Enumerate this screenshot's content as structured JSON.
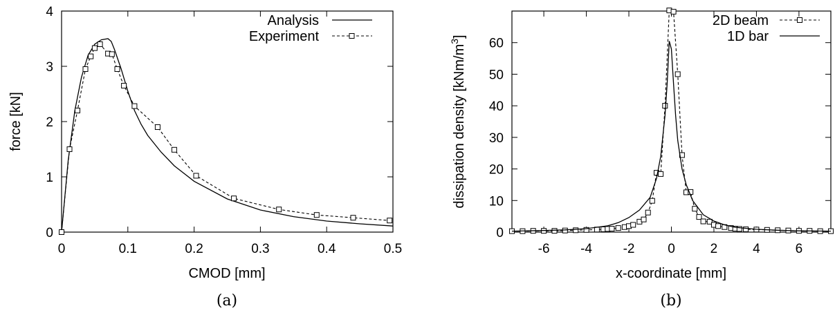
{
  "chart_data": [
    {
      "type": "line",
      "caption": "(a)",
      "xlabel": "CMOD [mm]",
      "ylabel": "force [kN]",
      "xlim": [
        0,
        0.5
      ],
      "ylim": [
        0,
        4
      ],
      "xticks": [
        0,
        0.1,
        0.2,
        0.3,
        0.4,
        0.5
      ],
      "yticks": [
        0,
        1,
        2,
        3,
        4
      ],
      "xtick_labels": [
        "0",
        "0.1",
        "0.2",
        "0.3",
        "0.4",
        "0.5"
      ],
      "ytick_labels": [
        "0",
        "1",
        "2",
        "3",
        "4"
      ],
      "grid": false,
      "legend_position": "top-right",
      "series": [
        {
          "name": "Analysis",
          "style": "solid",
          "marker": "none",
          "x": [
            0,
            0.01,
            0.02,
            0.03,
            0.04,
            0.05,
            0.06,
            0.07,
            0.075,
            0.08,
            0.09,
            0.1,
            0.11,
            0.12,
            0.13,
            0.15,
            0.17,
            0.2,
            0.25,
            0.3,
            0.35,
            0.4,
            0.45,
            0.5
          ],
          "y": [
            0,
            1.3,
            2.2,
            2.8,
            3.2,
            3.4,
            3.48,
            3.5,
            3.45,
            3.3,
            2.95,
            2.55,
            2.2,
            1.95,
            1.75,
            1.45,
            1.2,
            0.92,
            0.6,
            0.4,
            0.28,
            0.2,
            0.15,
            0.11
          ]
        },
        {
          "name": "Experiment",
          "style": "dashed",
          "marker": "square",
          "x": [
            0,
            0.012,
            0.024,
            0.036,
            0.044,
            0.05,
            0.058,
            0.07,
            0.076,
            0.084,
            0.094,
            0.11,
            0.145,
            0.17,
            0.203,
            0.26,
            0.328,
            0.385,
            0.44,
            0.495
          ],
          "y": [
            0,
            1.5,
            2.2,
            2.95,
            3.18,
            3.33,
            3.4,
            3.23,
            3.22,
            2.95,
            2.65,
            2.28,
            1.9,
            1.49,
            1.02,
            0.61,
            0.41,
            0.31,
            0.26,
            0.21
          ]
        }
      ]
    },
    {
      "type": "line",
      "caption": "(b)",
      "xlabel": "x-coordinate [mm]",
      "ylabel": "dissipation density [kNm/m",
      "ylabel_superscript": "3",
      "ylabel_suffix": "]",
      "xlim": [
        -7.5,
        7.5
      ],
      "ylim": [
        0,
        70
      ],
      "xticks": [
        -6,
        -4,
        -2,
        0,
        2,
        4,
        6
      ],
      "yticks": [
        0,
        10,
        20,
        30,
        40,
        50,
        60
      ],
      "xtick_labels": [
        "-6",
        "-4",
        "-2",
        "0",
        "2",
        "4",
        "6"
      ],
      "ytick_labels": [
        "0",
        "10",
        "20",
        "30",
        "40",
        "50",
        "60"
      ],
      "grid": false,
      "legend_position": "top-right",
      "series": [
        {
          "name": "2D beam",
          "style": "dashed",
          "marker": "square",
          "x": [
            -7.5,
            -7.0,
            -6.5,
            -6.0,
            -5.5,
            -5.0,
            -4.5,
            -4.0,
            -3.5,
            -3.2,
            -3.0,
            -2.8,
            -2.5,
            -2.2,
            -2.0,
            -1.8,
            -1.5,
            -1.3,
            -1.1,
            -0.9,
            -0.7,
            -0.5,
            -0.3,
            -0.1,
            0.1,
            0.3,
            0.5,
            0.7,
            0.9,
            1.1,
            1.3,
            1.5,
            1.8,
            2.0,
            2.2,
            2.5,
            2.8,
            3.0,
            3.2,
            3.5,
            4.0,
            4.5,
            5.0,
            5.5,
            6.0,
            6.5,
            7.0,
            7.5
          ],
          "y": [
            0.3,
            0.3,
            0.4,
            0.4,
            0.4,
            0.5,
            0.6,
            0.7,
            0.8,
            0.9,
            1.0,
            1.1,
            1.3,
            1.6,
            1.9,
            2.3,
            3.3,
            4.0,
            6.2,
            9.9,
            18.8,
            18.4,
            40.0,
            70.2,
            69.8,
            50.0,
            24.4,
            12.6,
            12.7,
            7.4,
            4.8,
            3.4,
            3.3,
            2.3,
            1.9,
            1.6,
            1.3,
            1.1,
            1.0,
            0.9,
            0.8,
            0.7,
            0.6,
            0.5,
            0.4,
            0.4,
            0.3,
            0.3
          ]
        },
        {
          "name": "1D bar",
          "style": "solid",
          "marker": "none",
          "x": [
            -7.5,
            -6.0,
            -5.0,
            -4.0,
            -3.0,
            -2.5,
            -2.0,
            -1.5,
            -1.0,
            -0.7,
            -0.5,
            -0.3,
            -0.2,
            -0.1,
            0,
            0.1,
            0.2,
            0.3,
            0.5,
            0.7,
            1.0,
            1.5,
            2.0,
            2.5,
            3.0,
            4.0,
            5.0,
            6.0,
            7.5
          ],
          "y": [
            0.3,
            0.5,
            0.7,
            1.1,
            2.0,
            3.0,
            4.6,
            7.0,
            11.0,
            17.0,
            24.0,
            37.0,
            47.0,
            60.5,
            58.0,
            47.0,
            37.0,
            29.0,
            20.0,
            15.0,
            10.0,
            5.5,
            3.5,
            2.3,
            1.5,
            0.9,
            0.6,
            0.4,
            0.3
          ]
        }
      ]
    }
  ]
}
